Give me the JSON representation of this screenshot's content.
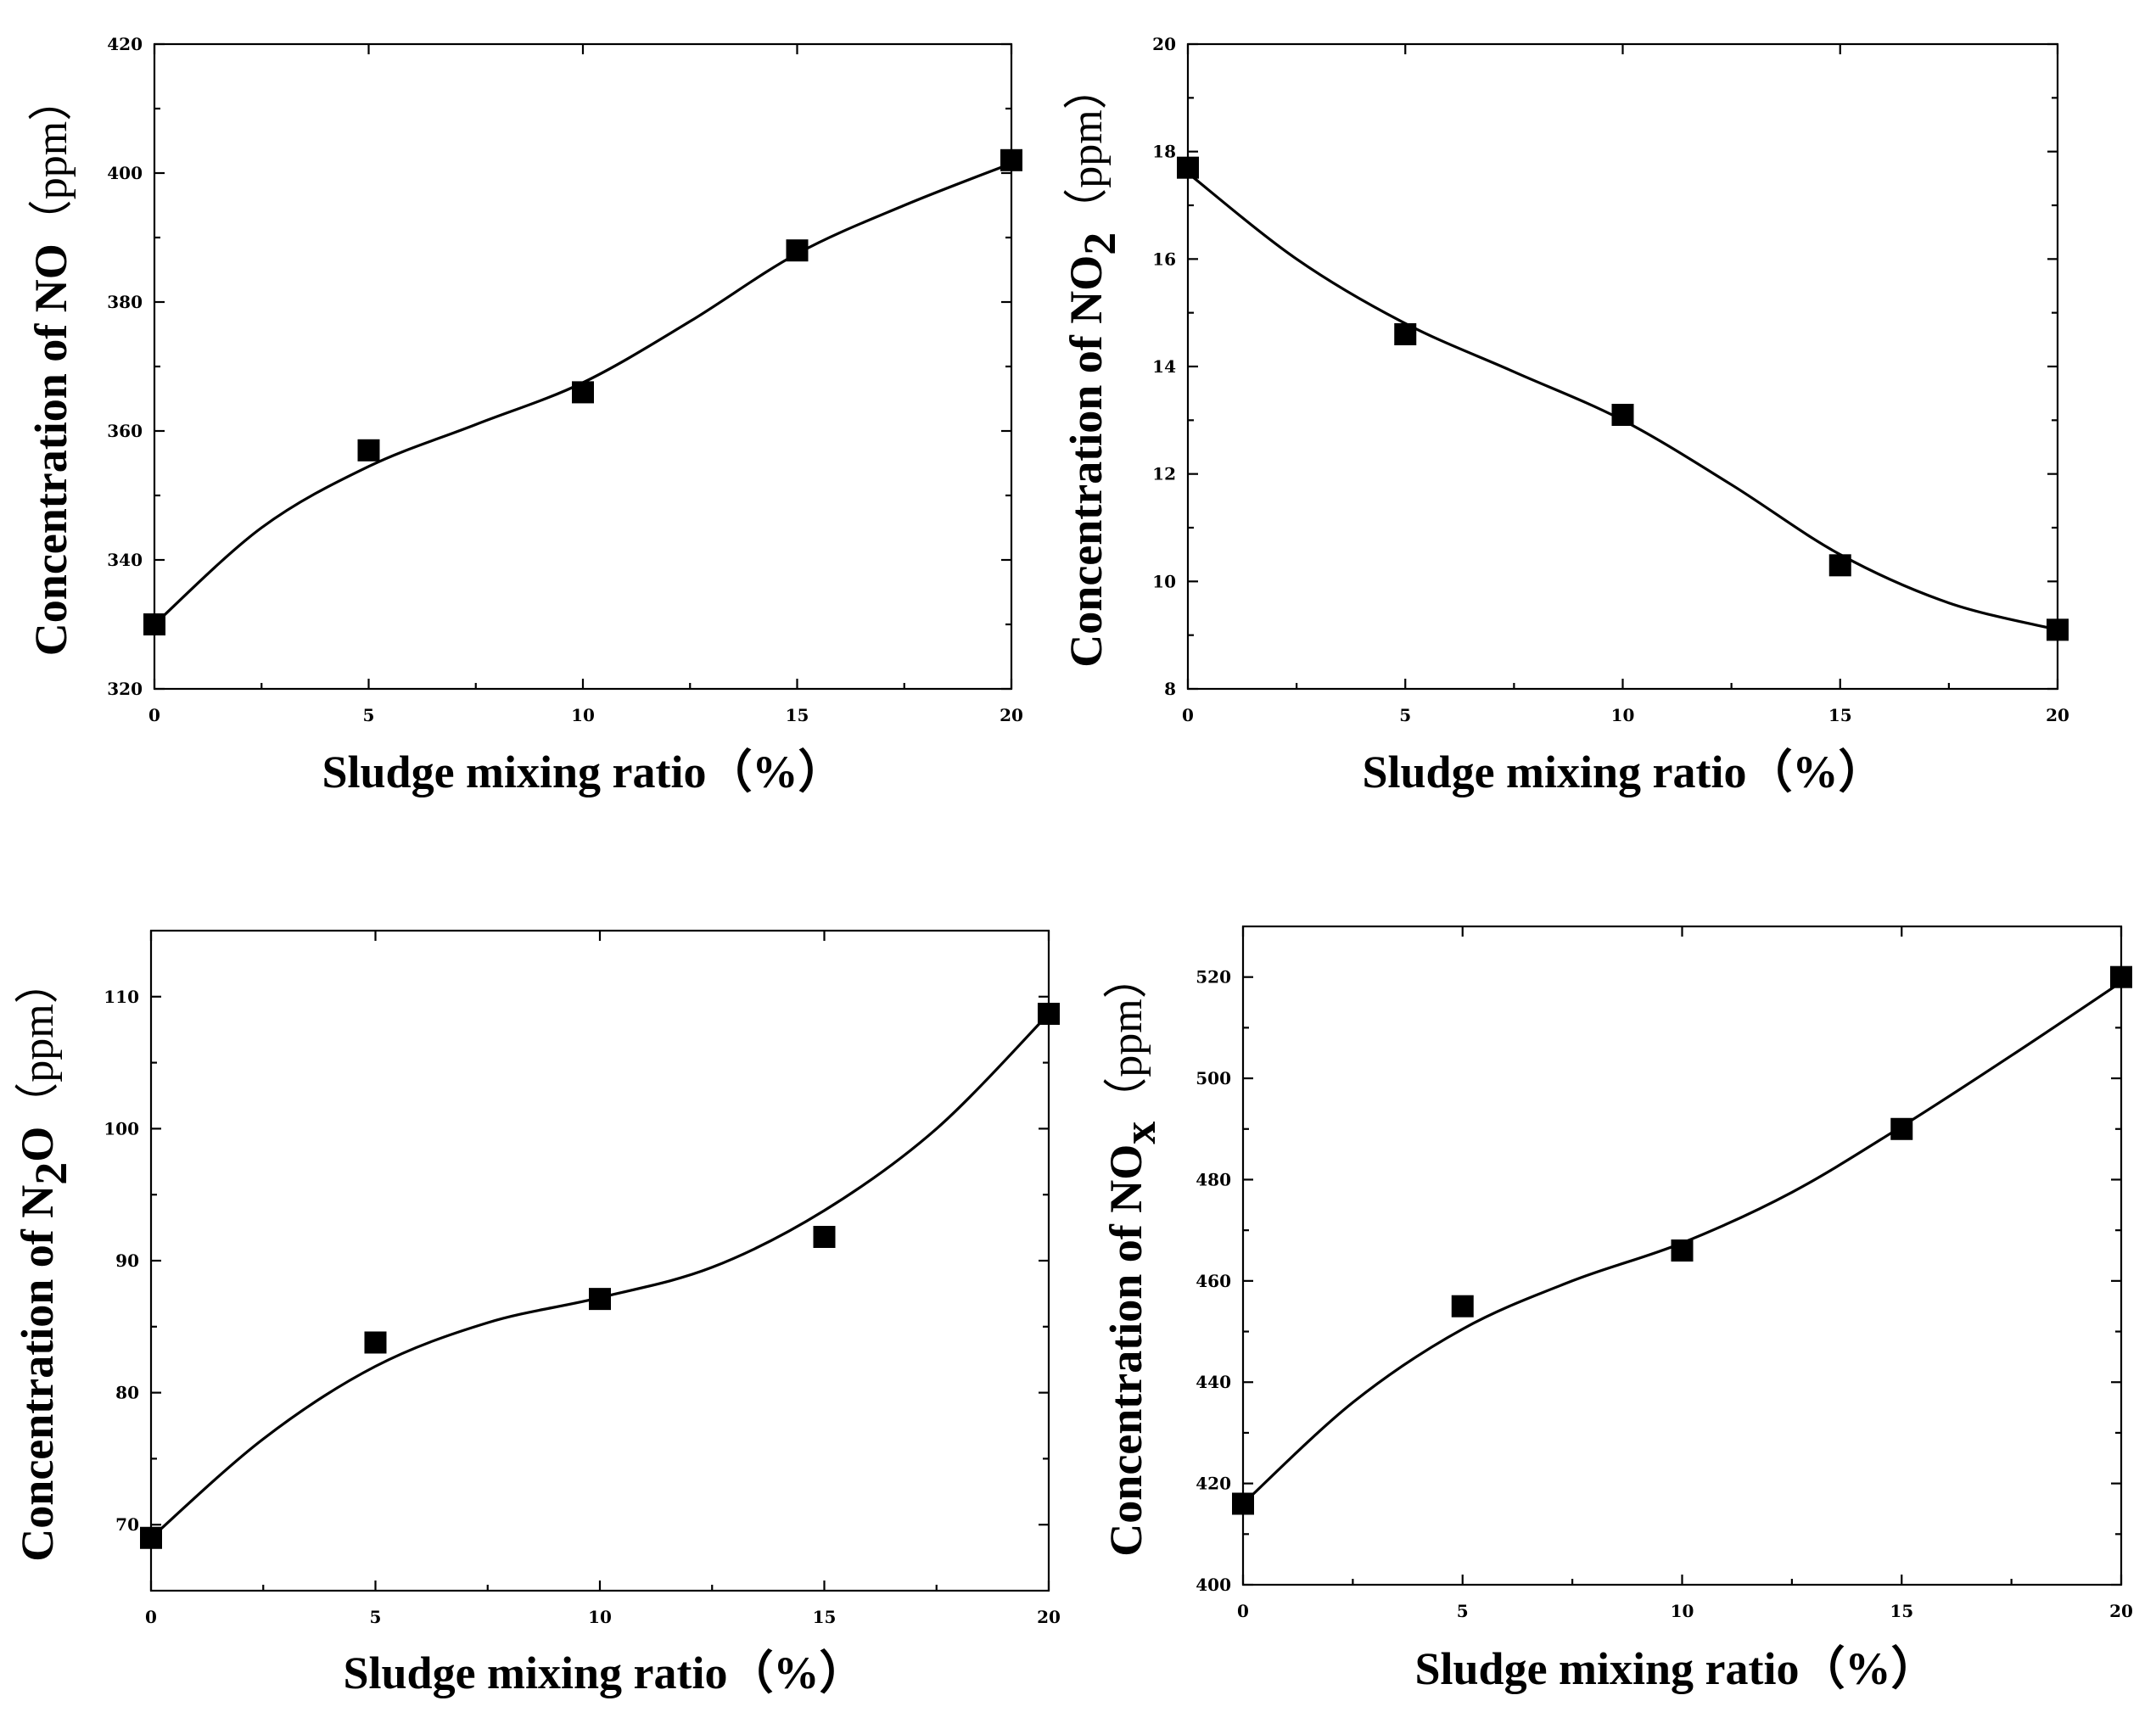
{
  "chart_data": [
    {
      "id": "no",
      "type": "scatter",
      "title": "",
      "xlabel": "Sludge mixing ratio（%）",
      "ylabel": {
        "main": "Concentration of NO",
        "sub": "",
        "unit": "（ppm）"
      },
      "x": [
        0,
        5,
        10,
        15,
        20
      ],
      "y": [
        330,
        357,
        366,
        388,
        402
      ],
      "fit_curve": [
        [
          0,
          330
        ],
        [
          2.5,
          345
        ],
        [
          5,
          354.5
        ],
        [
          7.5,
          361
        ],
        [
          10,
          367.5
        ],
        [
          12.5,
          377
        ],
        [
          15,
          387.5
        ],
        [
          17.5,
          395
        ],
        [
          20,
          401.5
        ]
      ],
      "xlim": [
        0,
        20
      ],
      "ylim": [
        320,
        420
      ],
      "xticks": [
        0,
        5,
        10,
        15,
        20
      ],
      "yticks": [
        320,
        340,
        360,
        380,
        400,
        420
      ],
      "minor_xticks": [
        2.5,
        7.5,
        12.5,
        17.5
      ],
      "minor_yticks": [
        330,
        350,
        370,
        390,
        410
      ],
      "grid": false
    },
    {
      "id": "no2",
      "type": "scatter",
      "title": "",
      "xlabel": "Sludge mixing ratio（%）",
      "ylabel": {
        "main": "Concentration of NO",
        "sub": "2",
        "unit": "（ppm）"
      },
      "x": [
        0,
        5,
        10,
        15,
        20
      ],
      "y": [
        17.7,
        14.6,
        13.1,
        10.3,
        9.1
      ],
      "fit_curve": [
        [
          0,
          17.6
        ],
        [
          2.5,
          16.0
        ],
        [
          5,
          14.8
        ],
        [
          7.5,
          13.9
        ],
        [
          10,
          13.0
        ],
        [
          12.5,
          11.8
        ],
        [
          15,
          10.5
        ],
        [
          17.5,
          9.6
        ],
        [
          20,
          9.1
        ]
      ],
      "xlim": [
        0,
        20
      ],
      "ylim": [
        8,
        20
      ],
      "xticks": [
        0,
        5,
        10,
        15,
        20
      ],
      "yticks": [
        8,
        10,
        12,
        14,
        16,
        18,
        20
      ],
      "minor_xticks": [
        2.5,
        7.5,
        12.5,
        17.5
      ],
      "minor_yticks": [
        9,
        11,
        13,
        15,
        17,
        19
      ],
      "grid": false
    },
    {
      "id": "n2o",
      "type": "scatter",
      "title": "",
      "xlabel": "Sludge mixing ratio（%）",
      "ylabel": {
        "main": "Concentration of N",
        "sub": "2",
        "main2": "O",
        "unit": "（ppm）"
      },
      "x": [
        0,
        5,
        10,
        15,
        20
      ],
      "y": [
        69,
        83.8,
        87.1,
        91.8,
        108.7
      ],
      "fit_curve": [
        [
          0,
          69
        ],
        [
          2.5,
          76.5
        ],
        [
          5,
          82
        ],
        [
          7.5,
          85.3
        ],
        [
          10,
          87.2
        ],
        [
          12.5,
          89.5
        ],
        [
          15,
          93.8
        ],
        [
          17.5,
          100
        ],
        [
          20,
          108.7
        ]
      ],
      "xlim": [
        0,
        20
      ],
      "ylim": [
        65,
        115
      ],
      "xticks": [
        0,
        5,
        10,
        15,
        20
      ],
      "yticks": [
        70,
        80,
        90,
        100,
        110
      ],
      "minor_xticks": [
        2.5,
        7.5,
        12.5,
        17.5
      ],
      "minor_yticks": [
        75,
        85,
        95,
        105
      ],
      "grid": false
    },
    {
      "id": "nox",
      "type": "scatter",
      "title": "",
      "xlabel": "Sludge mixing ratio（%）",
      "ylabel": {
        "main": "Concentration of NO",
        "sub": "x",
        "unit": "（ppm）"
      },
      "x": [
        0,
        5,
        10,
        15,
        20
      ],
      "y": [
        416,
        455,
        466,
        490,
        520
      ],
      "fit_curve": [
        [
          0,
          416
        ],
        [
          2.5,
          436
        ],
        [
          5,
          450.5
        ],
        [
          7.5,
          460
        ],
        [
          10,
          467.5
        ],
        [
          12.5,
          477.5
        ],
        [
          15,
          490.5
        ],
        [
          17.5,
          504.5
        ],
        [
          20,
          519
        ]
      ],
      "xlim": [
        0,
        20
      ],
      "ylim": [
        400,
        530
      ],
      "xticks": [
        0,
        5,
        10,
        15,
        20
      ],
      "yticks": [
        400,
        420,
        440,
        460,
        480,
        500,
        520
      ],
      "minor_xticks": [
        2.5,
        7.5,
        12.5,
        17.5
      ],
      "minor_yticks": [
        410,
        430,
        450,
        470,
        490,
        510
      ],
      "grid": false
    }
  ]
}
